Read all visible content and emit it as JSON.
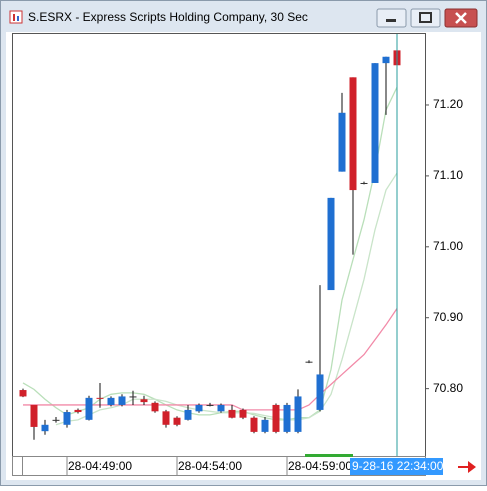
{
  "chart_data": {
    "type": "candlestick",
    "title": "S.ESRX - Express Scripts Holding Company, 30 Sec",
    "categories": [
      null,
      null,
      null,
      null,
      "28-04:49:00",
      null,
      null,
      null,
      null,
      null,
      null,
      null,
      null,
      null,
      "28-04:54:00",
      null,
      null,
      null,
      null,
      null,
      null,
      null,
      null,
      null,
      "28-04:59:00",
      null,
      null,
      null,
      null,
      null,
      null,
      null,
      null,
      null,
      null
    ],
    "open": [
      70.798,
      70.777,
      70.74,
      70.756,
      70.749,
      70.77,
      70.756,
      70.787,
      70.777,
      70.777,
      70.789,
      70.785,
      70.78,
      70.768,
      70.759,
      70.756,
      70.768,
      70.777,
      70.768,
      70.77,
      70.77,
      70.759,
      70.739,
      70.777,
      70.739,
      70.739,
      70.838,
      70.77,
      70.939,
      71.106,
      71.239,
      71.09,
      71.09,
      71.259,
      71.277
    ],
    "high": [
      70.8,
      70.777,
      70.756,
      70.76,
      70.77,
      70.772,
      70.79,
      70.808,
      70.789,
      70.792,
      70.797,
      70.79,
      70.782,
      70.77,
      70.761,
      70.777,
      70.779,
      70.78,
      70.779,
      70.777,
      70.772,
      70.761,
      70.76,
      70.779,
      70.78,
      70.799,
      70.84,
      70.946,
      71.069,
      71.217,
      71.239,
      71.092,
      71.259,
      71.268,
      71.277
    ],
    "low": [
      70.788,
      70.728,
      70.735,
      70.752,
      70.745,
      70.765,
      70.755,
      70.773,
      70.775,
      70.775,
      70.777,
      70.777,
      70.766,
      70.745,
      70.747,
      70.755,
      70.766,
      70.775,
      70.766,
      70.758,
      70.757,
      70.737,
      70.737,
      70.737,
      70.737,
      70.737,
      70.836,
      70.768,
      70.939,
      71.106,
      70.989,
      71.088,
      71.09,
      71.186,
      71.169
    ],
    "close": [
      70.789,
      70.746,
      70.749,
      70.756,
      70.767,
      70.767,
      70.787,
      70.786,
      70.787,
      70.789,
      70.789,
      70.781,
      70.768,
      70.749,
      70.749,
      70.77,
      70.777,
      70.777,
      70.777,
      70.759,
      70.759,
      70.739,
      70.756,
      70.739,
      70.777,
      70.789,
      70.838,
      70.82,
      71.069,
      71.189,
      71.08,
      71.09,
      71.259,
      71.268,
      71.256
    ],
    "up_color": "#1f6fd1",
    "down_color": "#d0202a",
    "doji_color": "#333333",
    "overlays": [
      {
        "color": "#b9dfb9",
        "values": [
          70.808,
          70.799,
          70.785,
          70.773,
          70.763,
          70.768,
          70.773,
          70.785,
          70.792,
          70.794,
          70.794,
          70.792,
          70.785,
          70.777,
          70.77,
          70.766,
          70.763,
          70.763,
          70.766,
          70.768,
          70.768,
          70.763,
          70.759,
          70.756,
          70.756,
          70.759,
          70.759,
          70.77,
          70.827,
          70.925,
          70.982,
          71.038,
          71.108,
          71.193,
          71.225
        ]
      },
      {
        "color": "#c9e4c9",
        "values": [
          null,
          null,
          null,
          70.749,
          70.754,
          70.756,
          70.763,
          70.77,
          70.773,
          70.777,
          70.785,
          70.785,
          70.785,
          70.782,
          70.777,
          70.773,
          70.77,
          70.768,
          70.766,
          70.766,
          70.766,
          70.765,
          70.762,
          70.759,
          70.756,
          70.756,
          70.759,
          70.768,
          70.792,
          70.841,
          70.897,
          70.954,
          71.024,
          71.08,
          71.104
        ]
      },
      {
        "color": "#f28aa8",
        "values": [
          70.777,
          70.777,
          70.777,
          70.777,
          70.777,
          70.777,
          70.777,
          70.777,
          70.777,
          70.777,
          70.777,
          70.777,
          70.777,
          70.777,
          70.777,
          70.777,
          70.777,
          70.777,
          70.777,
          70.777,
          70.77,
          70.77,
          70.77,
          70.77,
          70.77,
          70.77,
          70.777,
          70.792,
          70.806,
          70.82,
          70.834,
          70.848,
          70.869,
          70.89,
          70.913
        ]
      }
    ],
    "ylim": [
      70.705,
      71.3015
    ],
    "yticks": [
      {
        "value": 70.8,
        "label": "70.80"
      },
      {
        "value": 70.9,
        "label": "70.90"
      },
      {
        "value": 71.0,
        "label": "71.00"
      },
      {
        "value": 71.1,
        "label": "71.10"
      },
      {
        "value": 71.2,
        "label": "71.20"
      }
    ],
    "cursor_index": 34,
    "cursor_label": "9-28-16 22:34:00"
  }
}
